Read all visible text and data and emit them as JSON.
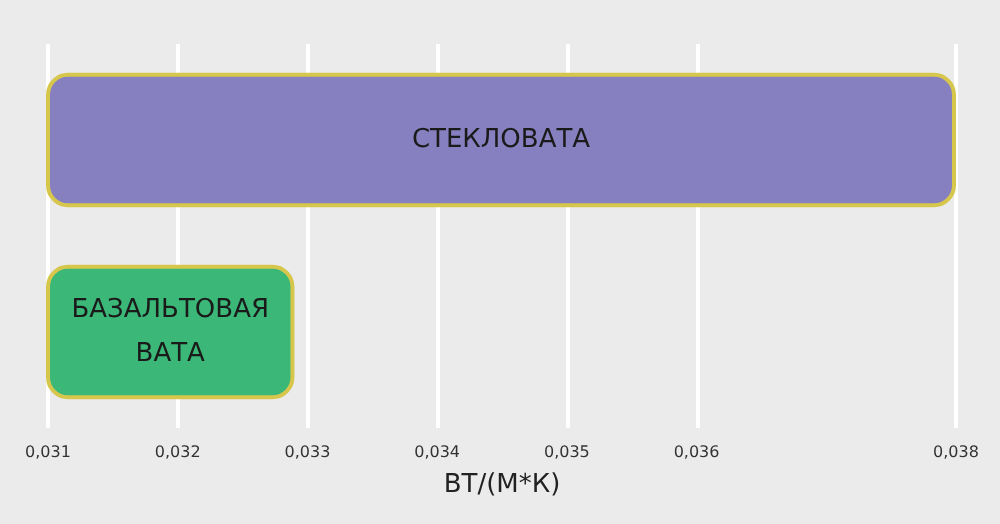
{
  "chart_data": {
    "type": "bar",
    "orientation": "horizontal",
    "categories": [
      "СТЕКЛОВАТА",
      "БАЗАЛЬТОВАЯ ВАТА"
    ],
    "values": [
      0.038,
      0.0329
    ],
    "colors": [
      "#8780c0",
      "#3bb878"
    ],
    "xlabel": "ВТ/(М*К)",
    "xlim": [
      0.031,
      0.038
    ],
    "xticks": [
      {
        "value": 0.031,
        "label": "0,031"
      },
      {
        "value": 0.032,
        "label": "0,032"
      },
      {
        "value": 0.033,
        "label": "0,033"
      },
      {
        "value": 0.034,
        "label": "0,034"
      },
      {
        "value": 0.035,
        "label": "0,035"
      },
      {
        "value": 0.036,
        "label": "0,036"
      },
      {
        "value": 0.038,
        "label": "0,038"
      }
    ],
    "grid": "x",
    "tick_labels": "x"
  }
}
